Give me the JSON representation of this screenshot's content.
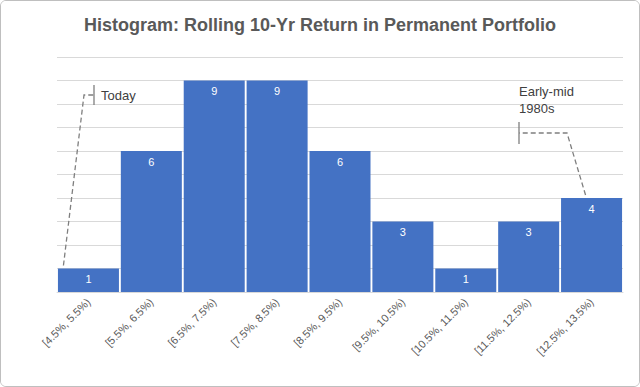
{
  "chart_data": {
    "type": "bar",
    "title": "Histogram: Rolling 10-Yr Return in Permanent Portfolio",
    "categories": [
      "[4.5%, 5.5%)",
      "[5.5%, 6.5%)",
      "[6.5%, 7.5%)",
      "[7.5%, 8.5%)",
      "[8.5%, 9.5%)",
      "[9.5%, 10.5%)",
      "[10.5%, 11.5%)",
      "[11.5%, 12.5%)",
      "[12.5%, 13.5%)"
    ],
    "values": [
      1,
      6,
      9,
      9,
      6,
      3,
      1,
      3,
      4
    ],
    "color": "#4472c4",
    "ylim": [
      0,
      10
    ],
    "yticks": [
      0,
      1,
      2,
      3,
      4,
      5,
      6,
      7,
      8,
      9,
      10
    ],
    "grid": true,
    "data_labels": true,
    "tick_labels": "x",
    "annotations": [
      {
        "text": "Today",
        "category": "[4.5%, 5.5%)"
      },
      {
        "text": "Early-mid 1980s",
        "category": "[12.5%, 13.5%)"
      }
    ]
  }
}
